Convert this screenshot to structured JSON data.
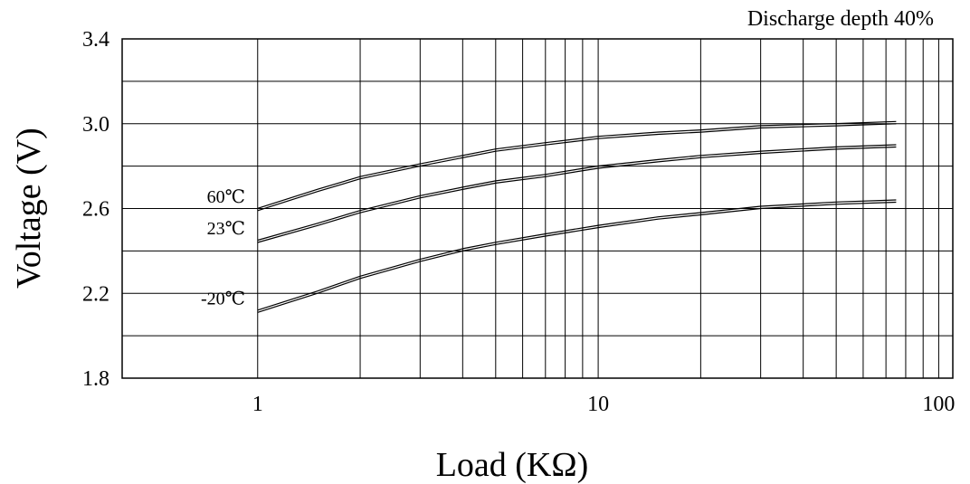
{
  "chart_data": {
    "type": "line",
    "annotation": "Discharge depth 40%",
    "xlabel": "Load (KΩ)",
    "ylabel": "Voltage (V)",
    "x_scale": "log",
    "xlim": [
      0.4,
      110
    ],
    "ylim": [
      1.8,
      3.4
    ],
    "x_ticks": [
      1,
      10,
      100
    ],
    "x_tick_labels": [
      "1",
      "10",
      "100"
    ],
    "y_ticks": [
      1.8,
      2.2,
      2.6,
      3.0,
      3.4
    ],
    "y_tick_labels": [
      "1.8",
      "2.2",
      "2.6",
      "3.0",
      "3.4"
    ],
    "grid": true,
    "line_color": "#000000",
    "series": [
      {
        "name": "60℃",
        "x": [
          1,
          1.5,
          2,
          3,
          5,
          7,
          10,
          15,
          20,
          30,
          50,
          75
        ],
        "y": [
          2.59,
          2.68,
          2.74,
          2.8,
          2.87,
          2.9,
          2.93,
          2.95,
          2.96,
          2.98,
          2.99,
          3.0
        ]
      },
      {
        "name": "23℃",
        "x": [
          1,
          1.5,
          2,
          3,
          4,
          5,
          7,
          10,
          15,
          20,
          30,
          50,
          75
        ],
        "y": [
          2.44,
          2.52,
          2.58,
          2.65,
          2.69,
          2.72,
          2.75,
          2.79,
          2.82,
          2.84,
          2.86,
          2.88,
          2.89
        ]
      },
      {
        "name": "-20℃",
        "x": [
          1,
          1.5,
          2,
          3,
          4,
          5,
          7,
          10,
          15,
          20,
          30,
          50,
          75
        ],
        "y": [
          2.11,
          2.2,
          2.27,
          2.35,
          2.4,
          2.43,
          2.47,
          2.51,
          2.55,
          2.57,
          2.6,
          2.62,
          2.63
        ]
      }
    ]
  }
}
